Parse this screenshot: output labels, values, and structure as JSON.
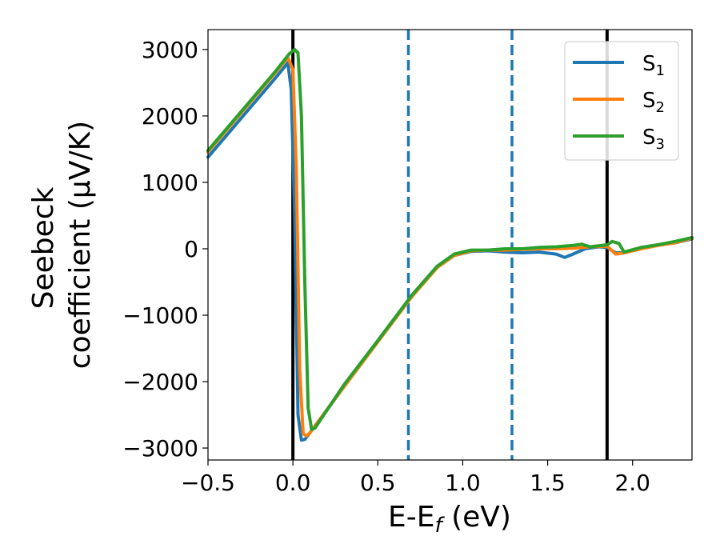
{
  "chart_data": {
    "type": "line",
    "xlabel_main": "E-E",
    "xlabel_sub": "f",
    "xlabel_tail": " (eV)",
    "ylabel_line1": "Seebeck",
    "ylabel_line2": "coefficient  (μV/K)",
    "xlim": [
      -0.5,
      2.35
    ],
    "ylim": [
      -3180,
      3300
    ],
    "x_ticks": [
      -0.5,
      0.0,
      0.5,
      1.0,
      1.5,
      2.0
    ],
    "x_tick_labels": [
      "−0.5",
      "0.0",
      "0.5",
      "1.0",
      "1.5",
      "2.0"
    ],
    "y_ticks": [
      -3000,
      -2000,
      -1000,
      0,
      1000,
      2000,
      3000
    ],
    "y_tick_labels": [
      "−3000",
      "−2000",
      "−1000",
      "0",
      "1000",
      "2000",
      "3000"
    ],
    "grid": false,
    "legend_position": "top-right",
    "vertical_lines": [
      {
        "x": 0.0,
        "color": "#000000",
        "style": "solid"
      },
      {
        "x": 1.85,
        "color": "#000000",
        "style": "solid"
      },
      {
        "x": 0.68,
        "color": "#1f77b4",
        "style": "dashed"
      },
      {
        "x": 1.29,
        "color": "#1f77b4",
        "style": "dashed"
      }
    ],
    "series": [
      {
        "name": "S",
        "sub": "1",
        "color": "#1f77b4",
        "x": [
          -0.5,
          -0.3,
          -0.1,
          -0.03,
          -0.01,
          0.01,
          0.03,
          0.05,
          0.07,
          0.1,
          0.3,
          0.5,
          0.7,
          0.85,
          0.95,
          1.05,
          1.15,
          1.25,
          1.35,
          1.45,
          1.55,
          1.6,
          1.65,
          1.72,
          1.8,
          1.85,
          1.9,
          1.95,
          2.05,
          2.15,
          2.25,
          2.35
        ],
        "y": [
          1380,
          1980,
          2580,
          2800,
          2400,
          500,
          -2500,
          -2880,
          -2870,
          -2770,
          -2080,
          -1400,
          -720,
          -280,
          -100,
          -40,
          -30,
          -50,
          -60,
          -50,
          -80,
          -130,
          -80,
          0,
          30,
          20,
          -60,
          -60,
          20,
          60,
          90,
          150
        ]
      },
      {
        "name": "S",
        "sub": "2",
        "color": "#ff7f0e",
        "x": [
          -0.5,
          -0.3,
          -0.1,
          -0.03,
          0.0,
          0.02,
          0.04,
          0.06,
          0.08,
          0.1,
          0.3,
          0.5,
          0.7,
          0.85,
          0.95,
          1.05,
          1.15,
          1.25,
          1.35,
          1.45,
          1.55,
          1.65,
          1.75,
          1.85,
          1.9,
          1.95,
          2.05,
          2.15,
          2.25,
          2.35
        ],
        "y": [
          1460,
          2060,
          2660,
          2880,
          2700,
          1200,
          -1800,
          -2780,
          -2820,
          -2770,
          -2080,
          -1400,
          -720,
          -280,
          -100,
          -30,
          -20,
          -20,
          -10,
          0,
          0,
          10,
          30,
          40,
          -80,
          -60,
          0,
          50,
          90,
          160
        ]
      },
      {
        "name": "S",
        "sub": "3",
        "color": "#2ca02c",
        "x": [
          -0.5,
          -0.3,
          -0.1,
          -0.02,
          0.01,
          0.03,
          0.05,
          0.07,
          0.09,
          0.11,
          0.13,
          0.3,
          0.5,
          0.7,
          0.85,
          0.95,
          1.05,
          1.15,
          1.25,
          1.35,
          1.45,
          1.55,
          1.65,
          1.7,
          1.75,
          1.85,
          1.88,
          1.92,
          1.95,
          2.05,
          2.15,
          2.25,
          2.35
        ],
        "y": [
          1480,
          2080,
          2680,
          2940,
          3000,
          2950,
          2000,
          -500,
          -2400,
          -2720,
          -2700,
          -2050,
          -1380,
          -700,
          -260,
          -80,
          -20,
          -20,
          0,
          0,
          20,
          30,
          50,
          70,
          30,
          60,
          110,
          80,
          -50,
          20,
          60,
          110,
          170
        ]
      }
    ]
  }
}
